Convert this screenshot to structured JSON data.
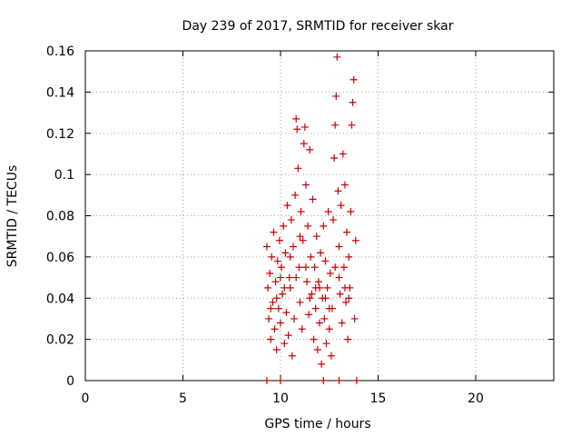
{
  "chart_data": {
    "type": "scatter",
    "title": "Day 239 of 2017, SRMTID for receiver skar",
    "xlabel": "GPS time / hours",
    "ylabel": "SRMTID / TECUs",
    "xlim": [
      0,
      24
    ],
    "ylim": [
      0,
      0.16
    ],
    "xticks": [
      0,
      5,
      10,
      15,
      20
    ],
    "xtick_labels": [
      "0",
      "5",
      "10",
      "15",
      "20"
    ],
    "yticks": [
      0,
      0.02,
      0.04,
      0.06,
      0.08,
      0.1,
      0.12,
      0.14,
      0.16
    ],
    "ytick_labels": [
      "0",
      "0.02",
      "0.04",
      "0.06",
      "0.08",
      "0.1",
      "0.12",
      "0.14",
      "0.16"
    ],
    "grid": true,
    "marker": "plus",
    "series": [
      {
        "name": "SRMTID",
        "color": "#cc0000",
        "points": [
          [
            9.3,
            0.065
          ],
          [
            9.35,
            0.045
          ],
          [
            9.4,
            0.03
          ],
          [
            9.45,
            0.052
          ],
          [
            9.5,
            0.02
          ],
          [
            9.55,
            0.06
          ],
          [
            9.6,
            0.038
          ],
          [
            9.65,
            0.072
          ],
          [
            9.7,
            0.025
          ],
          [
            9.75,
            0.048
          ],
          [
            9.8,
            0.015
          ],
          [
            9.85,
            0.058
          ],
          [
            9.9,
            0.035
          ],
          [
            9.95,
            0.068
          ],
          [
            10.0,
            0.028
          ],
          [
            10.05,
            0.055
          ],
          [
            10.1,
            0.042
          ],
          [
            10.15,
            0.075
          ],
          [
            10.2,
            0.018
          ],
          [
            10.25,
            0.062
          ],
          [
            10.3,
            0.033
          ],
          [
            10.35,
            0.085
          ],
          [
            10.4,
            0.022
          ],
          [
            10.45,
            0.05
          ],
          [
            10.5,
            0.045
          ],
          [
            10.55,
            0.078
          ],
          [
            10.6,
            0.012
          ],
          [
            10.65,
            0.065
          ],
          [
            10.7,
            0.03
          ],
          [
            10.75,
            0.09
          ],
          [
            10.8,
            0.127
          ],
          [
            10.85,
            0.122
          ],
          [
            10.9,
            0.103
          ],
          [
            10.95,
            0.055
          ],
          [
            11.0,
            0.038
          ],
          [
            11.05,
            0.082
          ],
          [
            11.1,
            0.025
          ],
          [
            11.15,
            0.068
          ],
          [
            11.2,
            0.115
          ],
          [
            11.25,
            0.123
          ],
          [
            11.3,
            0.095
          ],
          [
            11.35,
            0.048
          ],
          [
            11.4,
            0.075
          ],
          [
            11.45,
            0.032
          ],
          [
            11.5,
            0.112
          ],
          [
            11.55,
            0.06
          ],
          [
            11.6,
            0.042
          ],
          [
            11.65,
            0.088
          ],
          [
            11.7,
            0.02
          ],
          [
            11.75,
            0.055
          ],
          [
            11.8,
            0.035
          ],
          [
            11.85,
            0.07
          ],
          [
            11.9,
            0.015
          ],
          [
            11.95,
            0.048
          ],
          [
            12.0,
            0.028
          ],
          [
            12.05,
            0.062
          ],
          [
            12.1,
            0.008
          ],
          [
            12.15,
            0.04
          ],
          [
            12.2,
            0.075
          ],
          [
            12.25,
            0.03
          ],
          [
            12.3,
            0.058
          ],
          [
            12.35,
            0.018
          ],
          [
            12.4,
            0.045
          ],
          [
            12.45,
            0.082
          ],
          [
            12.5,
            0.025
          ],
          [
            12.55,
            0.052
          ],
          [
            12.6,
            0.012
          ],
          [
            12.65,
            0.035
          ],
          [
            12.7,
            0.078
          ],
          [
            12.75,
            0.108
          ],
          [
            12.8,
            0.124
          ],
          [
            12.85,
            0.138
          ],
          [
            12.9,
            0.157
          ],
          [
            12.95,
            0.092
          ],
          [
            13.0,
            0.065
          ],
          [
            13.05,
            0.042
          ],
          [
            13.1,
            0.085
          ],
          [
            13.15,
            0.028
          ],
          [
            13.2,
            0.11
          ],
          [
            13.25,
            0.055
          ],
          [
            13.3,
            0.095
          ],
          [
            13.35,
            0.038
          ],
          [
            13.4,
            0.072
          ],
          [
            13.45,
            0.02
          ],
          [
            13.5,
            0.06
          ],
          [
            13.55,
            0.045
          ],
          [
            13.6,
            0.082
          ],
          [
            13.65,
            0.124
          ],
          [
            13.7,
            0.135
          ],
          [
            13.75,
            0.146
          ],
          [
            13.8,
            0.03
          ],
          [
            13.85,
            0.068
          ],
          [
            9.5,
            0.035
          ],
          [
            10.0,
            0.05
          ],
          [
            10.5,
            0.06
          ],
          [
            11.0,
            0.07
          ],
          [
            11.5,
            0.04
          ],
          [
            12.0,
            0.045
          ],
          [
            12.5,
            0.035
          ],
          [
            13.0,
            0.05
          ],
          [
            13.5,
            0.04
          ],
          [
            9.8,
            0.04
          ],
          [
            10.2,
            0.045
          ],
          [
            10.8,
            0.05
          ],
          [
            11.3,
            0.055
          ],
          [
            11.8,
            0.045
          ],
          [
            12.3,
            0.04
          ],
          [
            12.8,
            0.055
          ],
          [
            13.3,
            0.045
          ],
          [
            9.3,
            0.0
          ],
          [
            10.0,
            0.0
          ],
          [
            12.2,
            0.0
          ],
          [
            13.0,
            0.0
          ],
          [
            13.9,
            0.0
          ]
        ]
      }
    ]
  }
}
